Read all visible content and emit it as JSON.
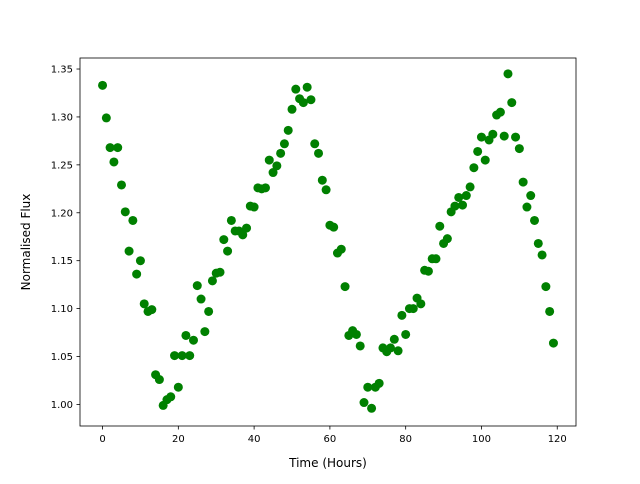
{
  "chart_data": {
    "type": "scatter",
    "x_label": "Time (Hours)",
    "y_label": "Normalised Flux",
    "color": "#008000",
    "x": [
      0,
      1,
      2,
      3,
      4,
      5,
      6,
      7,
      8,
      9,
      10,
      11,
      12,
      13,
      14,
      15,
      16,
      17,
      18,
      19,
      20,
      21,
      22,
      23,
      24,
      25,
      26,
      27,
      28,
      29,
      30,
      31,
      32,
      33,
      34,
      35,
      36,
      37,
      38,
      39,
      40,
      41,
      42,
      43,
      44,
      45,
      46,
      47,
      48,
      49,
      50,
      51,
      52,
      53,
      54,
      55,
      56,
      57,
      58,
      59,
      60,
      61,
      62,
      63,
      64,
      65,
      66,
      67,
      68,
      69,
      70,
      71,
      72,
      73,
      74,
      75,
      76,
      77,
      78,
      79,
      80,
      81,
      82,
      83,
      84,
      85,
      86,
      87,
      88,
      89,
      90,
      91,
      92,
      93,
      94,
      95,
      96,
      97,
      98,
      99,
      100,
      101,
      102,
      103,
      104,
      105,
      106,
      107,
      108,
      109,
      110,
      111,
      112,
      113,
      114,
      115,
      116,
      117,
      118,
      119
    ],
    "values": [
      1.333,
      1.299,
      1.268,
      1.253,
      1.268,
      1.229,
      1.201,
      1.16,
      1.192,
      1.136,
      1.15,
      1.105,
      1.097,
      1.099,
      1.031,
      1.026,
      0.999,
      1.005,
      1.008,
      1.051,
      1.018,
      1.051,
      1.072,
      1.051,
      1.067,
      1.124,
      1.11,
      1.076,
      1.097,
      1.129,
      1.137,
      1.138,
      1.172,
      1.16,
      1.192,
      1.181,
      1.181,
      1.177,
      1.184,
      1.207,
      1.206,
      1.226,
      1.225,
      1.226,
      1.255,
      1.242,
      1.249,
      1.262,
      1.272,
      1.286,
      1.308,
      1.329,
      1.319,
      1.315,
      1.331,
      1.318,
      1.272,
      1.262,
      1.234,
      1.224,
      1.187,
      1.185,
      1.158,
      1.162,
      1.123,
      1.072,
      1.077,
      1.073,
      1.061,
      1.002,
      1.018,
      0.996,
      1.018,
      1.022,
      1.059,
      1.055,
      1.059,
      1.068,
      1.056,
      1.093,
      1.073,
      1.1,
      1.1,
      1.111,
      1.105,
      1.14,
      1.139,
      1.152,
      1.152,
      1.186,
      1.168,
      1.173,
      1.201,
      1.207,
      1.216,
      1.208,
      1.218,
      1.227,
      1.247,
      1.264,
      1.279,
      1.255,
      1.276,
      1.282,
      1.302,
      1.305,
      1.28,
      1.345,
      1.315,
      1.279,
      1.267,
      1.232,
      1.206,
      1.218,
      1.192,
      1.168,
      1.156,
      1.123,
      1.097,
      1.064
    ],
    "xlim": [
      -5.95,
      124.95
    ],
    "xticks": [
      0,
      20,
      40,
      60,
      80,
      100,
      120
    ],
    "ylim": [
      0.9775,
      1.3615
    ],
    "yticks": [
      {
        "value": 1.0,
        "label": "1.00"
      },
      1.05,
      {
        "value": 1.1,
        "label": "1.10"
      },
      1.15,
      {
        "value": 1.2,
        "label": "1.20"
      },
      1.25,
      {
        "value": 1.3,
        "label": "1.30"
      },
      1.35
    ]
  }
}
